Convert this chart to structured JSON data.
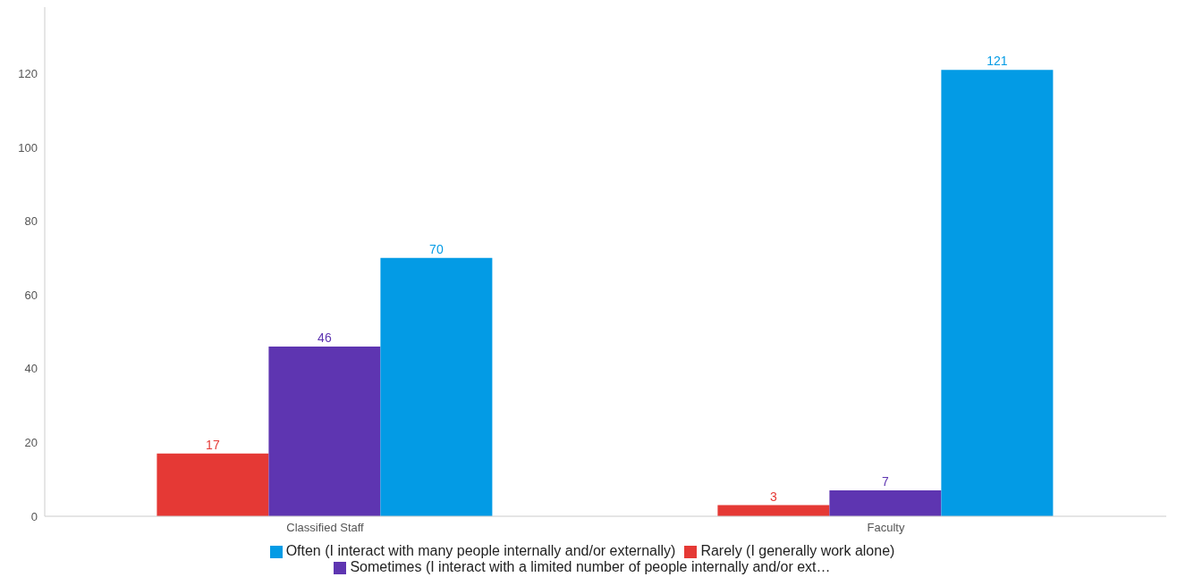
{
  "chart_data": {
    "type": "bar",
    "categories": [
      "Classified Staff",
      "Faculty"
    ],
    "series": [
      {
        "name": "Rarely (I generally work alone)",
        "color": "#e53935",
        "values": [
          17,
          3
        ]
      },
      {
        "name": "Sometimes (I interact with a limited number of people internally and/or ext…",
        "color": "#5e35b1",
        "values": [
          46,
          7
        ]
      },
      {
        "name": "Often (I interact with many people internally and/or externally)",
        "color": "#039be5",
        "values": [
          70,
          121
        ]
      }
    ],
    "ylim": [
      0,
      138
    ],
    "yticks": [
      0,
      20,
      40,
      60,
      80,
      100,
      120
    ],
    "grid": false,
    "legend": "bottom",
    "data_labels": true
  }
}
